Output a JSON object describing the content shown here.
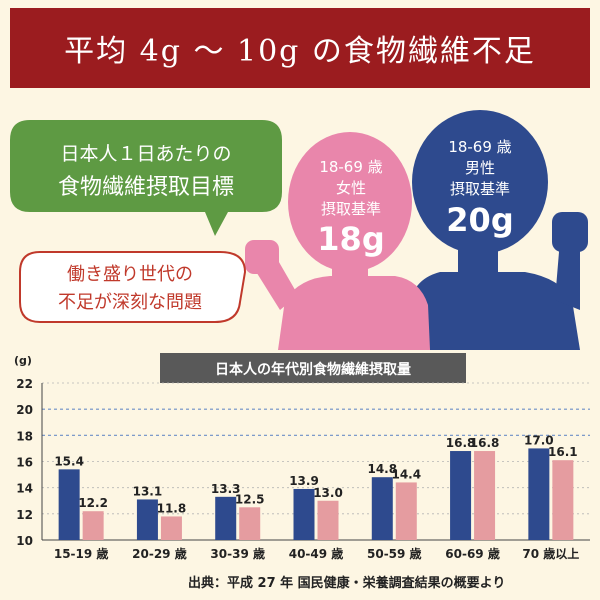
{
  "banner": {
    "title": "平均 4g 〜 10g の食物繊維不足",
    "bg_color": "#9b1c1f"
  },
  "hero": {
    "green_bubble": {
      "line1": "日本人１日あたりの",
      "line2": "食物繊維摂取目標",
      "color": "#5e9a43"
    },
    "red_bubble": {
      "line1": "働き盛り世代の",
      "line2": "不足が深刻な問題",
      "border_color": "#c0392b",
      "text_color": "#c0392b"
    },
    "female": {
      "age": "18-69 歳",
      "sex": "女性",
      "label": "摂取基準",
      "amount": "18g",
      "color": "#e986ab"
    },
    "male": {
      "age": "18-69 歳",
      "sex": "男性",
      "label": "摂取基準",
      "amount": "20g",
      "color": "#2e4a8e"
    }
  },
  "chart_data": {
    "type": "bar",
    "title": "日本人の年代別食物繊維摂取量",
    "unit": "(g)",
    "categories": [
      "15-19 歳",
      "20-29 歳",
      "30-39 歳",
      "40-49 歳",
      "50-59 歳",
      "60-69 歳",
      "70 歳以上"
    ],
    "series": [
      {
        "values": [
          15.4,
          13.1,
          13.3,
          13.9,
          14.8,
          16.8,
          17.0
        ],
        "color": "#2e4a8e"
      },
      {
        "values": [
          12.2,
          11.8,
          12.5,
          13.0,
          14.4,
          16.8,
          16.1
        ],
        "color": "#e59ca0"
      }
    ],
    "ylim": [
      10,
      22
    ],
    "yticks": [
      10,
      12,
      14,
      16,
      18,
      20,
      22
    ],
    "reference_lines": [
      18,
      20
    ],
    "value_labels": [
      [
        "15.4",
        "13.1",
        "13.3",
        "13.9",
        "14.8",
        "16.8",
        "17.0"
      ],
      [
        "12.2",
        "11.8",
        "12.5",
        "13.0",
        "14.4",
        "16.8",
        "16.1"
      ]
    ]
  },
  "footer": {
    "source": "出典：平成 27 年 国民健康・栄養調査結果の概要より"
  }
}
